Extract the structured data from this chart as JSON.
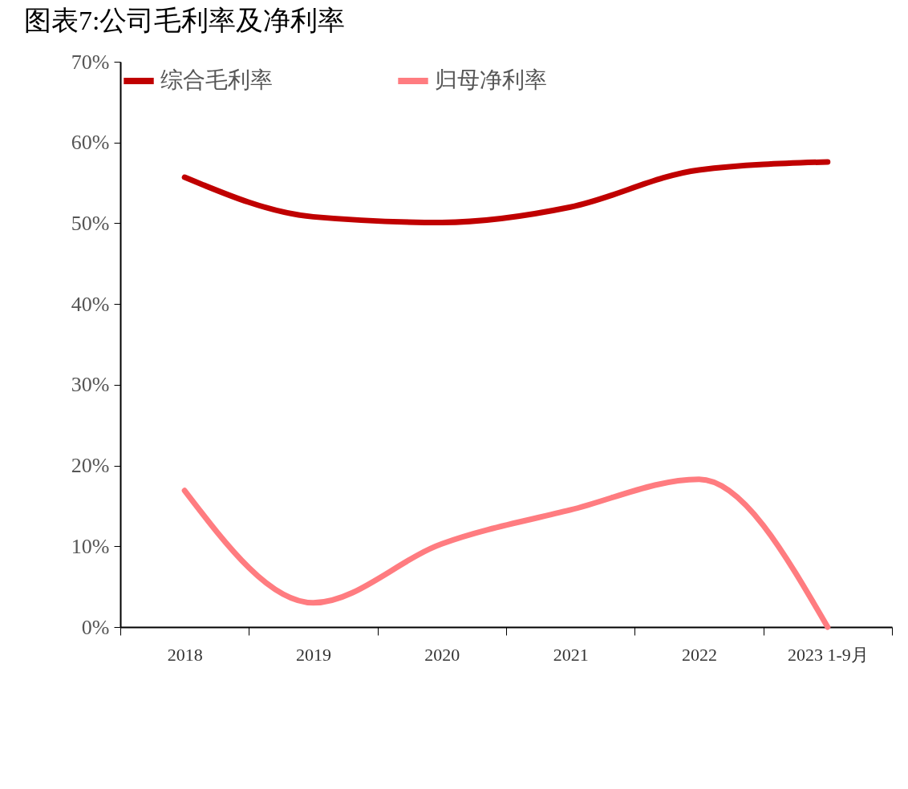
{
  "chart_data": {
    "type": "line",
    "title": "图表7:公司毛利率及净利率",
    "categories": [
      "2018",
      "2019",
      "2020",
      "2021",
      "2022",
      "2023 1-9月"
    ],
    "series": [
      {
        "name": "综合毛利率",
        "color": "#c00000",
        "values": [
          55.7,
          50.8,
          50.1,
          52.0,
          56.6,
          57.6
        ]
      },
      {
        "name": "归母净利率",
        "color": "#ff7c80",
        "values": [
          16.9,
          3.0,
          10.3,
          14.5,
          18.3,
          0
        ]
      }
    ],
    "ylim": [
      0,
      70
    ],
    "yticks": [
      {
        "value": 0,
        "label": "0%"
      },
      {
        "value": 10,
        "label": "10%"
      },
      {
        "value": 20,
        "label": "20%"
      },
      {
        "value": 30,
        "label": "30%"
      },
      {
        "value": 40,
        "label": "40%"
      },
      {
        "value": 50,
        "label": "50%"
      },
      {
        "value": 60,
        "label": "60%"
      },
      {
        "value": 70,
        "label": "70%"
      }
    ],
    "grid": false,
    "legend": "top",
    "marker": "none",
    "line_style": "solid"
  }
}
